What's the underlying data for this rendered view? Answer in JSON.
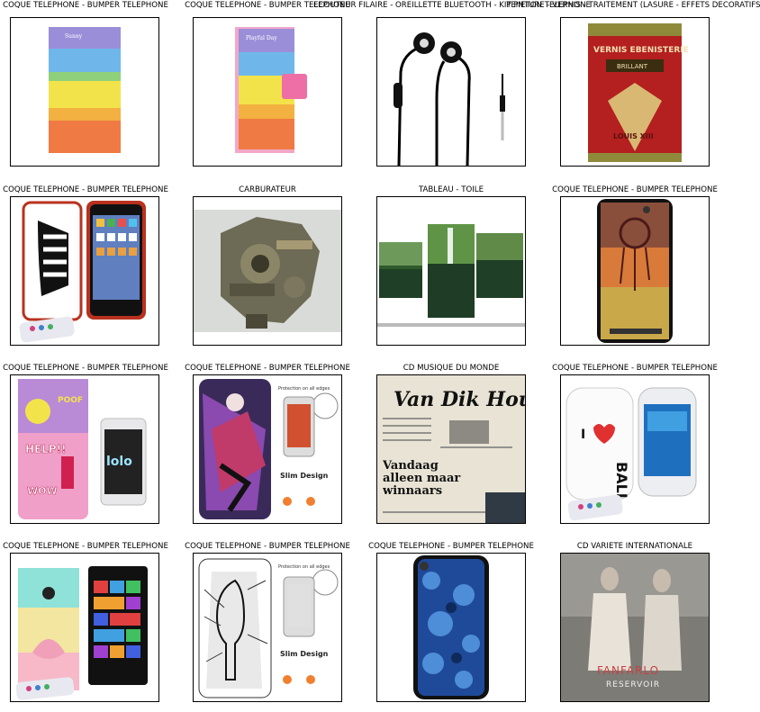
{
  "grid": [
    {
      "title": "COQUE TELEPHONE - BUMPER TELEPHONE",
      "image": "phone-case-rainbow-stripes-photo"
    },
    {
      "title": "COQUE TELEPHONE - BUMPER TELEPHONE",
      "image": "phone-case-rainbow-wallet-photo"
    },
    {
      "title": "ECOUTEUR FILAIRE - OREILLETTE BLUETOOTH - KIT PIETON TELEPHONE",
      "image": "earphones-photo"
    },
    {
      "title": "PEINTURE - VERNIS - TRAITEMENT (LASURE - EFFETS DECORATIFS)",
      "image": "varnish-can-photo"
    },
    {
      "title": "COQUE TELEPHONE - BUMPER TELEPHONE",
      "image": "phone-case-flag-photo"
    },
    {
      "title": "CARBURATEUR",
      "image": "carburetor-photo"
    },
    {
      "title": "TABLEAU - TOILE",
      "image": "canvas-waterfall-photo"
    },
    {
      "title": "COQUE TELEPHONE - BUMPER TELEPHONE",
      "image": "phone-case-dreamcatcher-photo"
    },
    {
      "title": "COQUE TELEPHONE - BUMPER TELEPHONE",
      "image": "phone-case-popart-photo"
    },
    {
      "title": "COQUE TELEPHONE - BUMPER TELEPHONE",
      "image": "phone-case-anime-photo"
    },
    {
      "title": "CD MUSIQUE DU MONDE",
      "image": "cd-cover-newspaper-photo"
    },
    {
      "title": "COQUE TELEPHONE - BUMPER TELEPHONE",
      "image": "phone-case-bali-photo"
    },
    {
      "title": "COQUE TELEPHONE - BUMPER TELEPHONE",
      "image": "phone-case-lotus-photo"
    },
    {
      "title": "COQUE TELEPHONE - BUMPER TELEPHONE",
      "image": "phone-case-elephant-photo"
    },
    {
      "title": "COQUE TELEPHONE - BUMPER TELEPHONE",
      "image": "phone-case-blue-pattern-photo"
    },
    {
      "title": "CD VARIETE INTERNATIONALE",
      "image": "cd-cover-duo-photo"
    }
  ],
  "image_text": {
    "can_brand": "VERNIS EBENISTERIE",
    "can_label": "BRILLANT",
    "can_maker": "LOUIS XIII",
    "newspaper_masthead": "Van Dik Hout",
    "newspaper_headline": "Vandaag alleen maar winnaars",
    "bali_text": "BALI",
    "slim_design": "Slim Design",
    "protection": "Protection on all edges",
    "album_artist": "FANFARLO",
    "album_title": "RESERVOIR",
    "comic_help": "HELP!!",
    "comic_poof": "POOF",
    "comic_wow": "WOW"
  }
}
